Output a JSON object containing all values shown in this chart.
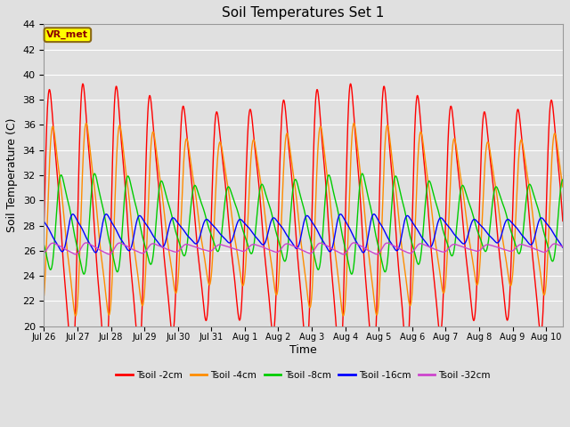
{
  "title": "Soil Temperatures Set 1",
  "xlabel": "Time",
  "ylabel": "Soil Temperature (C)",
  "ylim": [
    20,
    44
  ],
  "yticks": [
    20,
    22,
    24,
    26,
    28,
    30,
    32,
    34,
    36,
    38,
    40,
    42,
    44
  ],
  "annotation_text": "VR_met",
  "annotation_box_color": "#ffff00",
  "annotation_text_color": "#8b0000",
  "bg_color": "#e0e0e0",
  "plot_bg_color": "#e0e0e0",
  "grid_color": "#ffffff",
  "series": [
    {
      "label": "Tsoil -2cm",
      "color": "#ff0000",
      "mean": 31.0,
      "amplitude": 9.5,
      "phase": 0.0,
      "delay": 0.0,
      "env_amp": 1.5,
      "env_period": 8.0
    },
    {
      "label": "Tsoil -4cm",
      "color": "#ff8c00",
      "mean": 30.5,
      "amplitude": 6.5,
      "phase": 0.1,
      "delay": 0.0,
      "env_amp": 1.0,
      "env_period": 8.0
    },
    {
      "label": "Tsoil -8cm",
      "color": "#00cc00",
      "mean": 29.2,
      "amplitude": 3.2,
      "phase": 0.35,
      "delay": 0.0,
      "env_amp": 0.7,
      "env_period": 8.0
    },
    {
      "label": "Tsoil -16cm",
      "color": "#0000ff",
      "mean": 27.8,
      "amplitude": 1.2,
      "phase": 0.7,
      "delay": 0.0,
      "env_amp": 0.3,
      "env_period": 8.0
    },
    {
      "label": "Tsoil -32cm",
      "color": "#cc44cc",
      "mean": 26.3,
      "amplitude": 0.35,
      "phase": 1.1,
      "delay": 0.0,
      "env_amp": 0.1,
      "env_period": 8.0
    }
  ],
  "tick_labels": [
    "Jul 26",
    "Jul 27",
    "Jul 28",
    "Jul 29",
    "Jul 30",
    "Jul 31",
    "Aug 1",
    "Aug 2",
    "Aug 3",
    "Aug 4",
    "Aug 5",
    "Aug 6",
    "Aug 7",
    "Aug 8",
    "Aug 9",
    "Aug 10"
  ],
  "n_days": 15.5,
  "n_points": 2000,
  "figsize": [
    6.4,
    4.8
  ],
  "dpi": 100
}
